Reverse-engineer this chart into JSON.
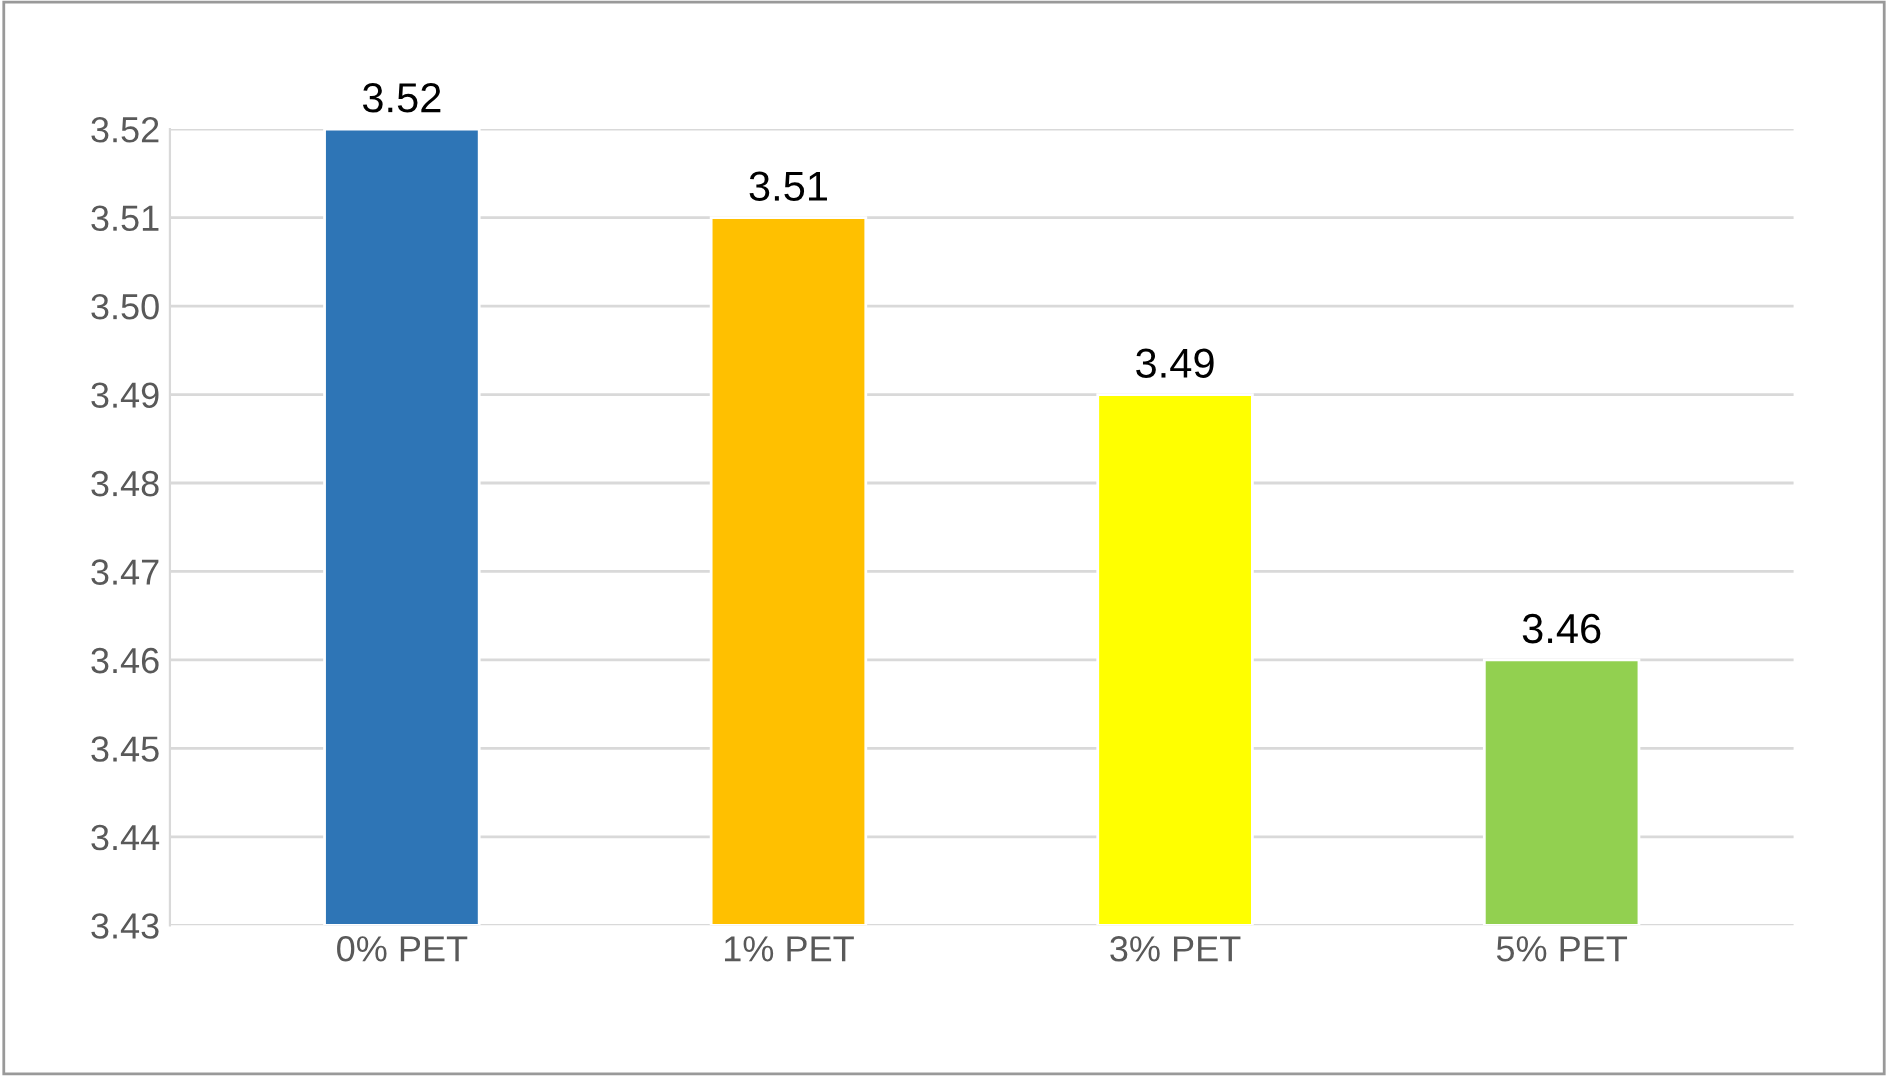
{
  "chart_data": {
    "type": "bar",
    "categories": [
      "0% PET",
      "1% PET",
      "3% PET",
      "5% PET"
    ],
    "values": [
      3.52,
      3.51,
      3.49,
      3.46
    ],
    "colors": [
      "#2e75b6",
      "#ffc000",
      "#ffff00",
      "#92d050"
    ],
    "ylim": [
      3.43,
      3.52
    ],
    "yticks": [
      3.43,
      3.44,
      3.45,
      3.46,
      3.47,
      3.48,
      3.49,
      {
        "value": 3.5,
        "label": "3.50"
      },
      3.51,
      3.52
    ],
    "grid": "y",
    "data_labels": true
  }
}
